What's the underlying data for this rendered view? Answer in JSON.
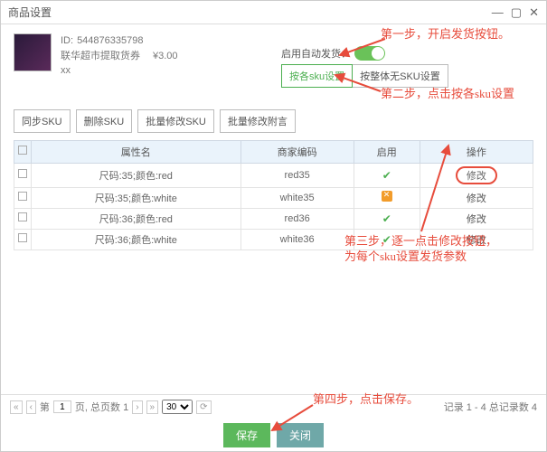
{
  "dialog": {
    "title": "商品设置"
  },
  "product": {
    "id_label": "ID:",
    "id": "544876335798",
    "name": "联华超市提取货券",
    "price": "¥3.00",
    "sub": "xx"
  },
  "auto_ship": {
    "label": "启用自动发货："
  },
  "seg": {
    "by_sku": "按各sku设置",
    "whole": "按整体无SKU设置"
  },
  "buttons": {
    "sync": "同步SKU",
    "delete": "删除SKU",
    "batch_edit": "批量修改SKU",
    "batch_note": "批量修改附言"
  },
  "table": {
    "headers": {
      "attr": "属性名",
      "code": "商家编码",
      "enable": "启用",
      "op": "操作"
    },
    "rows": [
      {
        "attr": "尺码:35;颜色:red",
        "code": "red35",
        "enable": "green",
        "op": "修改",
        "highlight": true
      },
      {
        "attr": "尺码:35;颜色:white",
        "code": "white35",
        "enable": "orange",
        "op": "修改"
      },
      {
        "attr": "尺码:36;颜色:red",
        "code": "red36",
        "enable": "green",
        "op": "修改"
      },
      {
        "attr": "尺码:36;颜色:white",
        "code": "white36",
        "enable": "green",
        "op": "修改"
      }
    ]
  },
  "pager": {
    "page_label_a": "第",
    "page_value": "1",
    "page_label_b": "页,  总页数  1",
    "size": "30",
    "records": "记录 1 - 4 总记录数 4"
  },
  "footer": {
    "save": "保存",
    "close": "关闭"
  },
  "annotations": {
    "step1": "第一步，开启发货按钮。",
    "step2": "第二步，点击按各sku设置",
    "step3a": "第三步，逐一点击修改按钮，",
    "step3b": "为每个sku设置发货参数",
    "step4": "第四步，点击保存。"
  },
  "colors": {
    "accent": "#e74c3c",
    "green": "#5cb85c"
  }
}
